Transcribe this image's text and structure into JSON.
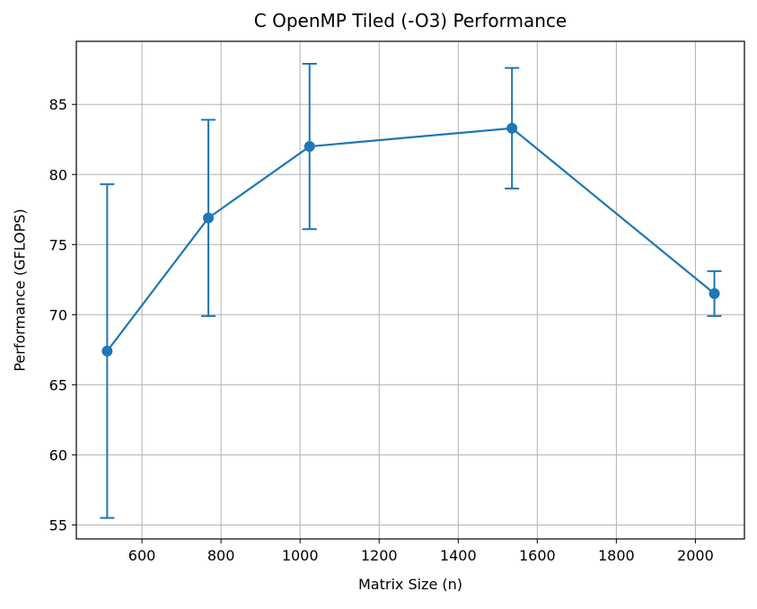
{
  "chart_data": {
    "type": "line",
    "title": "C OpenMP Tiled (-O3) Performance",
    "xlabel": "Matrix Size (n)",
    "ylabel": "Performance (GFLOPS)",
    "xlim": [
      434,
      2124
    ],
    "ylim": [
      54.0,
      89.5
    ],
    "x_ticks": [
      600,
      800,
      1000,
      1200,
      1400,
      1600,
      1800,
      2000
    ],
    "y_ticks": [
      55,
      60,
      65,
      70,
      75,
      80,
      85
    ],
    "grid": true,
    "series": [
      {
        "x": [
          512,
          768,
          1024,
          1536,
          2048
        ],
        "y": [
          67.4,
          76.9,
          82.0,
          83.3,
          71.5
        ],
        "error": [
          11.9,
          7.0,
          5.9,
          4.3,
          1.6
        ],
        "color": "#1f77b4",
        "marker": "circle"
      }
    ]
  }
}
